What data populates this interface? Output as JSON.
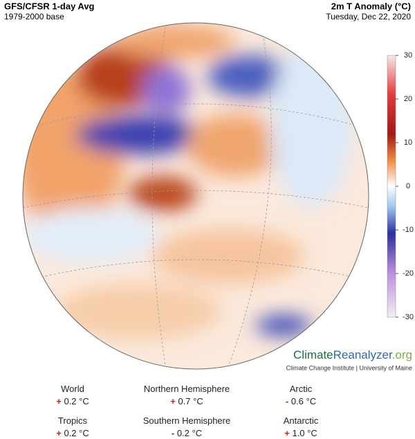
{
  "header": {
    "title_left": "GFS/CFSR 1-day Avg",
    "subtitle_left": "1979-2000 base",
    "title_right": "2m T Anomaly (°C)",
    "subtitle_right": "Tuesday, Dec 22, 2020"
  },
  "colorbar": {
    "ylim": [
      -30,
      30
    ],
    "yticks": [
      30,
      20,
      10,
      0,
      -10,
      -20,
      -30
    ]
  },
  "branding": {
    "name_a": "Climate",
    "name_b": "Reanalyzer",
    "name_c": ".org",
    "credit": "Climate Change Institute | University of Maine"
  },
  "stats": [
    {
      "label": "World",
      "sign": "+",
      "value": "0.2 °C"
    },
    {
      "label": "Northern Hemisphere",
      "sign": "+",
      "value": "0.7 °C"
    },
    {
      "label": "Arctic",
      "sign": "-",
      "value": "0.6 °C"
    },
    {
      "label": "Tropics",
      "sign": "+",
      "value": "0.2 °C"
    },
    {
      "label": "Southern Hemisphere",
      "sign": "-",
      "value": "0.2 °C"
    },
    {
      "label": "Antarctic",
      "sign": "+",
      "value": "1.0 °C"
    }
  ]
}
